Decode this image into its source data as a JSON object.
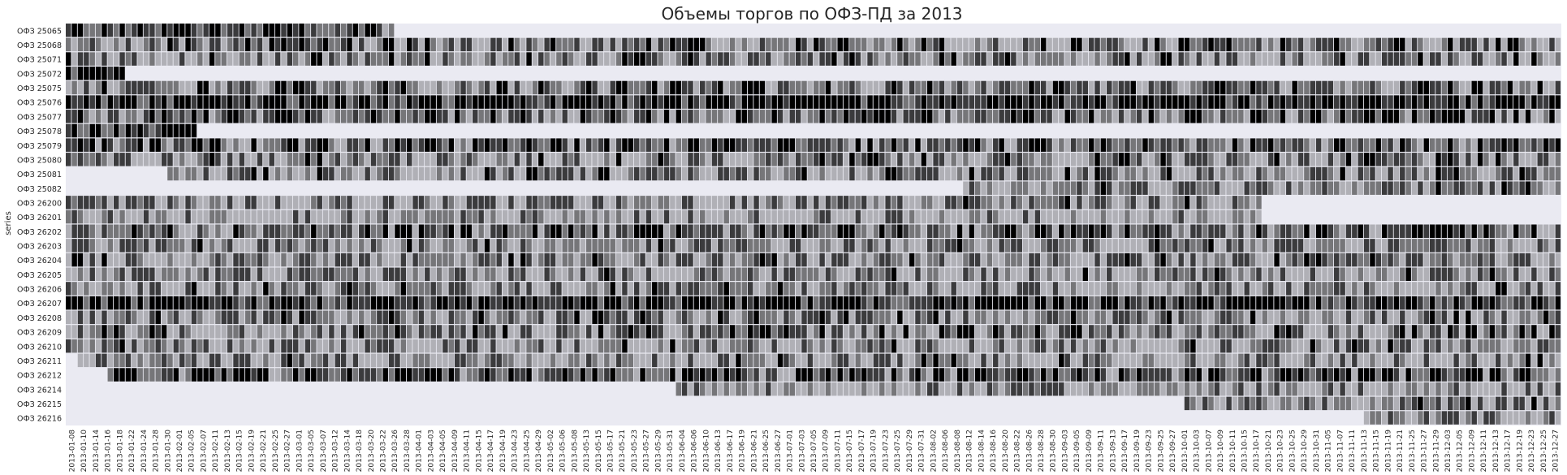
{
  "chart_data": {
    "type": "heatmap",
    "title": "Объемы торгов по ОФЗ-ПД за 2013",
    "ylabel": "series",
    "xlabel": "",
    "start_date": "2013-01-08",
    "end_date": "2013-12-27",
    "x_tick_labels": [
      "2013-01-08",
      "2013-01-10",
      "2013-01-14",
      "2013-01-16",
      "2013-01-18",
      "2013-01-22",
      "2013-01-24",
      "2013-01-28",
      "2013-01-30",
      "2013-02-01",
      "2013-02-05",
      "2013-02-07",
      "2013-02-11",
      "2013-02-13",
      "2013-02-15",
      "2013-02-19",
      "2013-02-21",
      "2013-02-25",
      "2013-02-27",
      "2013-03-01",
      "2013-03-05",
      "2013-03-07",
      "2013-03-12",
      "2013-03-14",
      "2013-03-18",
      "2013-03-20",
      "2013-03-22",
      "2013-03-26",
      "2013-03-28",
      "2013-04-01",
      "2013-04-03",
      "2013-04-05",
      "2013-04-09",
      "2013-04-11",
      "2013-04-15",
      "2013-04-17",
      "2013-04-19",
      "2013-04-23",
      "2013-04-25",
      "2013-04-29",
      "2013-05-02",
      "2013-05-06",
      "2013-05-08",
      "2013-05-13",
      "2013-05-15",
      "2013-05-17",
      "2013-05-21",
      "2013-05-23",
      "2013-05-27",
      "2013-05-29",
      "2013-05-31",
      "2013-06-04",
      "2013-06-06",
      "2013-06-10",
      "2013-06-13",
      "2013-06-17",
      "2013-06-19",
      "2013-06-21",
      "2013-06-25",
      "2013-06-27",
      "2013-07-01",
      "2013-07-03",
      "2013-07-05",
      "2013-07-09",
      "2013-07-11",
      "2013-07-15",
      "2013-07-17",
      "2013-07-19",
      "2013-07-23",
      "2013-07-25",
      "2013-07-29",
      "2013-07-31",
      "2013-08-02",
      "2013-08-06",
      "2013-08-08",
      "2013-08-12",
      "2013-08-14",
      "2013-08-16",
      "2013-08-20",
      "2013-08-22",
      "2013-08-26",
      "2013-08-28",
      "2013-08-30",
      "2013-09-03",
      "2013-09-05",
      "2013-09-09",
      "2013-09-11",
      "2013-09-13",
      "2013-09-17",
      "2013-09-19",
      "2013-09-23",
      "2013-09-25",
      "2013-09-27",
      "2013-10-01",
      "2013-10-03",
      "2013-10-07",
      "2013-10-09",
      "2013-10-11",
      "2013-10-15",
      "2013-10-17",
      "2013-10-21",
      "2013-10-23",
      "2013-10-25",
      "2013-10-29",
      "2013-10-31",
      "2013-11-05",
      "2013-11-07",
      "2013-11-11",
      "2013-11-13",
      "2013-11-15",
      "2013-11-19",
      "2013-11-21",
      "2013-11-25",
      "2013-11-27",
      "2013-11-29",
      "2013-12-03",
      "2013-12-05",
      "2013-12-09",
      "2013-12-11",
      "2013-12-13",
      "2013-12-17",
      "2013-12-19",
      "2013-12-23",
      "2013-12-25",
      "2013-12-27"
    ],
    "series": [
      {
        "name": "ОФЗ 25065",
        "active": [
          0,
          0.22
        ],
        "level": 0.8
      },
      {
        "name": "ОФЗ 25068",
        "active": [
          0,
          1
        ],
        "level": 0.55
      },
      {
        "name": "ОФЗ 25071",
        "active": [
          0,
          1
        ],
        "level": 0.5
      },
      {
        "name": "ОФЗ 25072",
        "active": [
          0,
          0.04
        ],
        "level": 0.95
      },
      {
        "name": "ОФЗ 25075",
        "active": [
          0,
          1
        ],
        "level": 0.6
      },
      {
        "name": "ОФЗ 25076",
        "active": [
          0,
          1
        ],
        "level": 0.92
      },
      {
        "name": "ОФЗ 25077",
        "active": [
          0,
          1
        ],
        "level": 0.65
      },
      {
        "name": "ОФЗ 25078",
        "active": [
          0,
          0.085
        ],
        "level": 0.95
      },
      {
        "name": "ОФЗ 25079",
        "active": [
          0,
          1
        ],
        "level": 0.65
      },
      {
        "name": "ОФЗ 25080",
        "active": [
          0,
          1
        ],
        "level": 0.5
      },
      {
        "name": "ОФЗ 25081",
        "active": [
          0.07,
          1
        ],
        "level": 0.5
      },
      {
        "name": "ОФЗ 25082",
        "active": [
          0.6,
          1
        ],
        "level": 0.55
      },
      {
        "name": "ОФЗ 26200",
        "active": [
          0,
          0.8
        ],
        "level": 0.45
      },
      {
        "name": "ОФЗ 26201",
        "active": [
          0,
          0.8
        ],
        "level": 0.3
      },
      {
        "name": "ОФЗ 26202",
        "active": [
          0,
          1
        ],
        "level": 0.65
      },
      {
        "name": "ОФЗ 26203",
        "active": [
          0,
          1
        ],
        "level": 0.45
      },
      {
        "name": "ОФЗ 26204",
        "active": [
          0,
          1
        ],
        "level": 0.5
      },
      {
        "name": "ОФЗ 26205",
        "active": [
          0,
          1
        ],
        "level": 0.45
      },
      {
        "name": "ОФЗ 26206",
        "active": [
          0,
          1
        ],
        "level": 0.45
      },
      {
        "name": "ОФЗ 26207",
        "active": [
          0,
          1
        ],
        "level": 0.92
      },
      {
        "name": "ОФЗ 26208",
        "active": [
          0,
          1
        ],
        "level": 0.5
      },
      {
        "name": "ОФЗ 26209",
        "active": [
          0,
          1
        ],
        "level": 0.55
      },
      {
        "name": "ОФЗ 26210",
        "active": [
          0,
          1
        ],
        "level": 0.45
      },
      {
        "name": "ОФЗ 26211",
        "active": [
          0.01,
          1
        ],
        "level": 0.45
      },
      {
        "name": "ОФЗ 26212",
        "active": [
          0.03,
          1
        ],
        "level": 0.75
      },
      {
        "name": "ОФЗ 26214",
        "active": [
          0.41,
          1
        ],
        "level": 0.35
      },
      {
        "name": "ОФЗ 26215",
        "active": [
          0.75,
          1
        ],
        "level": 0.5
      },
      {
        "name": "ОФЗ 26216",
        "active": [
          0.87,
          1
        ],
        "level": 0.5
      }
    ],
    "colormap": [
      "#ebebf2",
      "#000000"
    ],
    "grid": false,
    "legend": "none"
  }
}
